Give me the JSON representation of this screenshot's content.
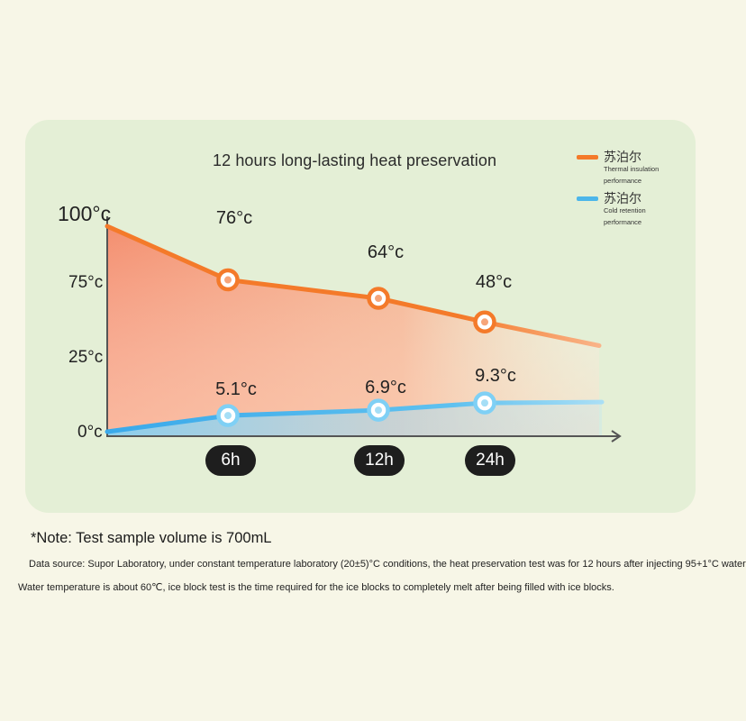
{
  "colors": {
    "card_bg": "#e4efd6",
    "page_bg": "#f7f6e7",
    "hot": "#f47a2a",
    "cold": "#4db6ea",
    "axis": "#555555",
    "pill": "#1e1e1e"
  },
  "chart_data": {
    "type": "area",
    "title": "12 hours long-lasting heat preservation",
    "y_tick_labels": [
      "100°c",
      "75°c",
      "25°c",
      "0°c"
    ],
    "categories": [
      "6h",
      "12h",
      "24h"
    ],
    "series": [
      {
        "name": "苏泊尔",
        "subtitle": "Thermal insulation performance",
        "color": "#f47a2a",
        "values": [
          76,
          64,
          48
        ],
        "labels": [
          "76°c",
          "64°c",
          "48°c"
        ]
      },
      {
        "name": "苏泊尔",
        "subtitle": "Cold retention performance",
        "color": "#4db6ea",
        "values": [
          5.1,
          6.9,
          9.3
        ],
        "labels": [
          "5.1°c",
          "6.9°c",
          "9.3°c"
        ]
      }
    ],
    "legend_position": "top-right"
  },
  "notes": {
    "note": "*Note: Test sample volume is 700mL",
    "source_line1": "Data source: Supor Laboratory, under constant temperature laboratory (20±5)°C conditions, the heat preservation test was for 12 hours after injecting 95+1°C water",
    "source_line2": "Water temperature is about 60℃, ice block test is the time required for the ice blocks to completely melt after being filled with ice blocks."
  }
}
